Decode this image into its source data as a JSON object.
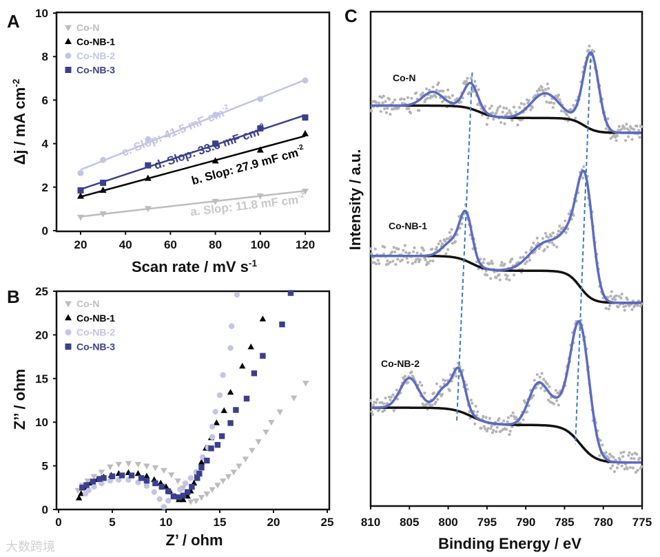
{
  "watermark": "大数跨境",
  "colors": {
    "Co-N": "#bdbdbd",
    "Co-NB-1": "#000000",
    "Co-NB-2": "#c3c5e6",
    "Co-NB-3": "#3b3f8f",
    "fit": "#5b6bc4",
    "raw": "#b4b4b4",
    "background": "#111111",
    "guide": "#3a78c8",
    "axis": "#111111"
  },
  "chart_data": [
    {
      "panel": "A",
      "type": "scatter",
      "xlabel": "Scan rate / mV s",
      "xlabel_sup": "-1",
      "ylabel": "Δj / mA cm",
      "ylabel_sup": "-2",
      "xlim": [
        10,
        130
      ],
      "ylim": [
        0,
        10
      ],
      "xticks": [
        "20",
        "40",
        "60",
        "80",
        "100",
        "120"
      ],
      "yticks": [
        "0",
        "2",
        "4",
        "6",
        "8",
        "10"
      ],
      "legend_position": "top-left",
      "x": [
        20,
        30,
        50,
        80,
        100,
        120
      ],
      "series": [
        {
          "name": "Co-N",
          "marker": "triangle-down",
          "values": [
            0.62,
            0.78,
            1.02,
            1.35,
            1.6,
            1.82
          ],
          "annotation": "a. Slop: 11.8 mF cm",
          "annotation_sup": "-2"
        },
        {
          "name": "Co-NB-1",
          "marker": "triangle-up",
          "values": [
            1.58,
            1.85,
            2.4,
            3.2,
            3.7,
            4.45
          ],
          "annotation": "b. Slop: 27.9 mF cm",
          "annotation_sup": "-2"
        },
        {
          "name": "Co-NB-2",
          "marker": "circle",
          "values": [
            2.65,
            3.25,
            4.2,
            5.32,
            6.05,
            6.9
          ],
          "annotation": "c. Slop: 41.5 mF cm",
          "annotation_sup": "-2"
        },
        {
          "name": "Co-NB-3",
          "marker": "square",
          "values": [
            1.85,
            2.2,
            3.0,
            4.0,
            4.7,
            5.2
          ],
          "annotation": "d. Slop: 33.6 mF cm",
          "annotation_sup": "-2"
        }
      ]
    },
    {
      "panel": "B",
      "type": "scatter",
      "xlabel": "Z’ / ohm",
      "ylabel": "Z’’ / ohm",
      "xlim": [
        0,
        25
      ],
      "ylim": [
        0,
        25
      ],
      "xticks": [
        "0",
        "5",
        "10",
        "15",
        "20",
        "25"
      ],
      "yticks": [
        "0",
        "5",
        "10",
        "15",
        "20",
        "25"
      ],
      "legend_position": "top-left",
      "series": [
        {
          "name": "Co-N",
          "marker": "triangle-down",
          "points": [
            [
              1.8,
              2.2
            ],
            [
              2.2,
              2.8
            ],
            [
              2.7,
              3.3
            ],
            [
              3.3,
              3.8
            ],
            [
              4,
              4.3
            ],
            [
              4.8,
              4.9
            ],
            [
              5.6,
              5.2
            ],
            [
              6.5,
              5.3
            ],
            [
              7.4,
              5.2
            ],
            [
              8.2,
              5.0
            ],
            [
              9,
              4.8
            ],
            [
              9.8,
              4.5
            ],
            [
              10.5,
              4.0
            ],
            [
              11.1,
              3.3
            ],
            [
              11.6,
              2.5
            ],
            [
              12,
              1.6
            ],
            [
              12.3,
              0.9
            ],
            [
              12.8,
              1.0
            ],
            [
              13.3,
              1.4
            ],
            [
              13.8,
              1.8
            ],
            [
              14.3,
              2.3
            ],
            [
              14.8,
              2.8
            ],
            [
              15.3,
              3.3
            ],
            [
              15.8,
              3.8
            ],
            [
              16.3,
              4.3
            ],
            [
              16.8,
              5.0
            ],
            [
              17.4,
              5.8
            ],
            [
              18,
              6.8
            ],
            [
              18.6,
              7.8
            ],
            [
              19.3,
              8.9
            ],
            [
              19.8,
              10
            ],
            [
              20.6,
              11.2
            ],
            [
              21.9,
              12.8
            ],
            [
              23,
              14.5
            ]
          ]
        },
        {
          "name": "Co-NB-1",
          "marker": "triangle-up",
          "points": [
            [
              1.9,
              1.3
            ],
            [
              2.1,
              1.8
            ],
            [
              2.5,
              2.5
            ],
            [
              3,
              3.0
            ],
            [
              3.6,
              3.4
            ],
            [
              4.2,
              3.7
            ],
            [
              4.9,
              3.9
            ],
            [
              5.6,
              4.1
            ],
            [
              6.5,
              4.2
            ],
            [
              7.4,
              4.1
            ],
            [
              8.2,
              3.8
            ],
            [
              8.9,
              3.4
            ],
            [
              9.5,
              3.0
            ],
            [
              10,
              2.6
            ],
            [
              10.4,
              2.0
            ],
            [
              10.8,
              1.5
            ],
            [
              11.2,
              1.1
            ],
            [
              11.6,
              1.1
            ],
            [
              12,
              1.5
            ],
            [
              12.3,
              2.1
            ],
            [
              12.6,
              3.0
            ],
            [
              12.9,
              4.2
            ],
            [
              13.3,
              5.4
            ],
            [
              13.7,
              7
            ],
            [
              14.2,
              8.2
            ],
            [
              14.7,
              9.9
            ],
            [
              15.4,
              11.3
            ],
            [
              16,
              13.4
            ],
            [
              17.1,
              16.4
            ],
            [
              17.9,
              18.6
            ],
            [
              19,
              21.8
            ]
          ]
        },
        {
          "name": "Co-NB-2",
          "marker": "circle",
          "points": [
            [
              2.5,
              1.8
            ],
            [
              2.8,
              2.2
            ],
            [
              3.3,
              2.6
            ],
            [
              4,
              3.0
            ],
            [
              4.8,
              3.3
            ],
            [
              5.6,
              3.4
            ],
            [
              6.5,
              3.4
            ],
            [
              7.4,
              3.1
            ],
            [
              8.2,
              2.7
            ],
            [
              8.9,
              2.0
            ],
            [
              9.4,
              1.2
            ],
            [
              9.8,
              0.3
            ],
            [
              10.2,
              1.0
            ],
            [
              10.7,
              1.6
            ],
            [
              11.3,
              2.3
            ],
            [
              11.8,
              3.0
            ],
            [
              12.3,
              3.6
            ],
            [
              12.8,
              4.3
            ],
            [
              13.4,
              6.0
            ],
            [
              13.9,
              7.1
            ],
            [
              14.3,
              8.3
            ],
            [
              14.3,
              9.5
            ],
            [
              14.6,
              11.2
            ],
            [
              15,
              13.1
            ],
            [
              15.3,
              15.4
            ],
            [
              16,
              18.5
            ],
            [
              16.1,
              21
            ],
            [
              16.6,
              24.6
            ]
          ]
        },
        {
          "name": "Co-NB-3",
          "marker": "square",
          "points": [
            [
              2.2,
              2.5
            ],
            [
              2.6,
              2.8
            ],
            [
              3.2,
              3.2
            ],
            [
              3.8,
              3.5
            ],
            [
              4.2,
              3.6
            ],
            [
              5,
              3.8
            ],
            [
              5.9,
              3.9
            ],
            [
              6.8,
              3.9
            ],
            [
              7.7,
              3.6
            ],
            [
              8.2,
              3.3
            ],
            [
              9,
              3.0
            ],
            [
              9.6,
              2.6
            ],
            [
              10.2,
              2.1
            ],
            [
              10.7,
              1.5
            ],
            [
              11.2,
              1.4
            ],
            [
              11.6,
              1.6
            ],
            [
              12,
              2.0
            ],
            [
              12.4,
              2.6
            ],
            [
              12.9,
              3.6
            ],
            [
              13.1,
              4.1
            ],
            [
              13.3,
              4.8
            ],
            [
              13.8,
              5.6
            ],
            [
              14.2,
              7.0
            ],
            [
              14.8,
              7.4
            ],
            [
              15.2,
              8.4
            ],
            [
              16,
              9.9
            ],
            [
              16.5,
              11.4
            ],
            [
              17.5,
              12.7
            ],
            [
              18.2,
              15.6
            ],
            [
              19,
              17.6
            ],
            [
              20.8,
              21.2
            ],
            [
              21.6,
              24.8
            ]
          ]
        }
      ]
    },
    {
      "panel": "C",
      "type": "line",
      "xlabel": "Binding Energy / eV",
      "ylabel": "Intensity / a.u.",
      "xlim": [
        810,
        775
      ],
      "ylim": [
        0,
        100
      ],
      "xticks": [
        "810",
        "805",
        "800",
        "795",
        "790",
        "785",
        "780",
        "775"
      ],
      "series": [
        {
          "name": "Co-N",
          "background": {
            "start": 81,
            "steps": [
              [
                796,
                2.5,
                1
              ],
              [
                782.5,
                3,
                0.8
              ]
            ]
          },
          "peaks": [
            [
              802,
              2.8,
              1.3
            ],
            [
              797.1,
              5.2,
              0.9
            ],
            [
              787.5,
              5,
              1.8
            ],
            [
              781.6,
              15.5,
              1.0
            ]
          ]
        },
        {
          "name": "Co-NB-1",
          "background": {
            "start": 50.6,
            "steps": [
              [
                797,
                3,
                1
              ],
              [
                783,
                6.5,
                0.8
              ]
            ]
          },
          "peaks": [
            [
              799.5,
              3,
              1.2
            ],
            [
              797.7,
              9,
              0.8
            ],
            [
              787.5,
              5.5,
              2
            ],
            [
              783.8,
              8,
              1.5
            ],
            [
              782.3,
              19,
              1.0
            ]
          ]
        },
        {
          "name": "Co-NB-2",
          "background": {
            "start": 19.9,
            "steps": [
              [
                797,
                3.5,
                1.2
              ],
              [
                783,
                7.6,
                1
              ]
            ]
          },
          "peaks": [
            [
              805,
              6,
              1.2
            ],
            [
              800.5,
              4,
              1
            ],
            [
              798.6,
              8,
              0.8
            ],
            [
              788.5,
              7.5,
              1.2
            ],
            [
              786,
              4,
              1.5
            ],
            [
              783,
              24,
              1.2
            ]
          ]
        }
      ],
      "guides": [
        [
          [
            796.9,
            87.7
          ],
          [
            798.9,
            17.1
          ]
        ],
        [
          [
            781.6,
            91.9
          ],
          [
            783.6,
            12.5
          ]
        ]
      ]
    }
  ]
}
